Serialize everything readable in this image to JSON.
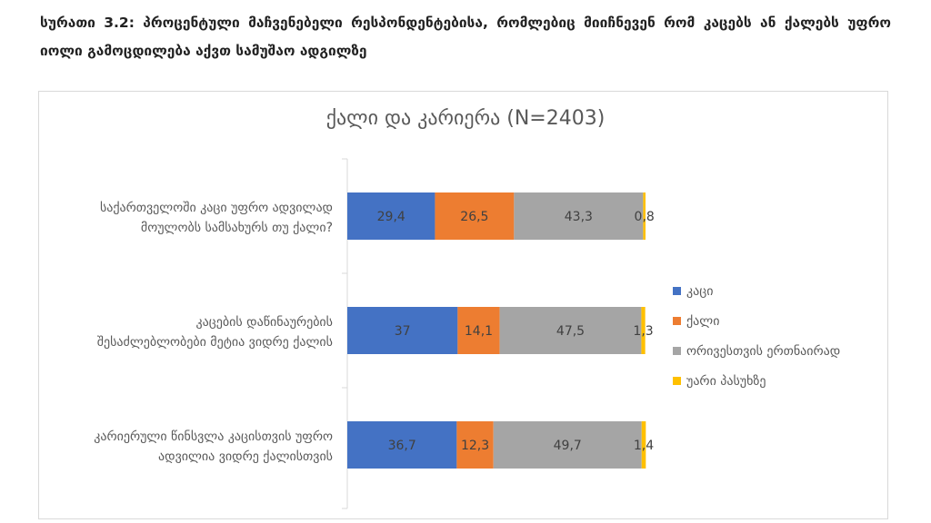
{
  "caption": "სურათი 3.2: პროცენტული მაჩვენებელი რესპონდენტებისა, რომლებიც მიიჩნევენ რომ კაცებს ან ქალებს უფრო იოლი გამოცდილება აქვთ სამუშაო ადგილზე",
  "chart_data": {
    "type": "bar",
    "orientation": "horizontal",
    "stacked": true,
    "title": "ქალი და კარიერა (N=2403)",
    "categories": [
      [
        "საქართველოში კაცი უფრო ადვილად",
        "მოულობს სამსახურს თუ ქალი?"
      ],
      [
        "კაცების დაწინაურების",
        "შესაძლებლობები მეტია ვიდრე ქალის"
      ],
      [
        "კარიერული წინსვლა კაცისთვის უფრო",
        "ადვილია ვიდრე ქალისთვის"
      ]
    ],
    "series": [
      {
        "name": "კაცი",
        "color": "#4472C4",
        "values": [
          29.4,
          37,
          36.7
        ],
        "labels": [
          "29,4",
          "37",
          "36,7"
        ]
      },
      {
        "name": "ქალი",
        "color": "#ED7D31",
        "values": [
          26.5,
          14.1,
          12.3
        ],
        "labels": [
          "26,5",
          "14,1",
          "12,3"
        ]
      },
      {
        "name": "ორივესთვის ერთნაირად",
        "color": "#A5A5A5",
        "values": [
          43.3,
          47.5,
          49.7
        ],
        "labels": [
          "43,3",
          "47,5",
          "49,7"
        ]
      },
      {
        "name": "უარი პასუხზე",
        "color": "#FFC000",
        "values": [
          0.8,
          1.3,
          1.4
        ],
        "labels": [
          "0,8",
          "1,3",
          "1,4"
        ]
      }
    ],
    "xlim": [
      0,
      100
    ],
    "grid": false,
    "legend_position": "right"
  }
}
